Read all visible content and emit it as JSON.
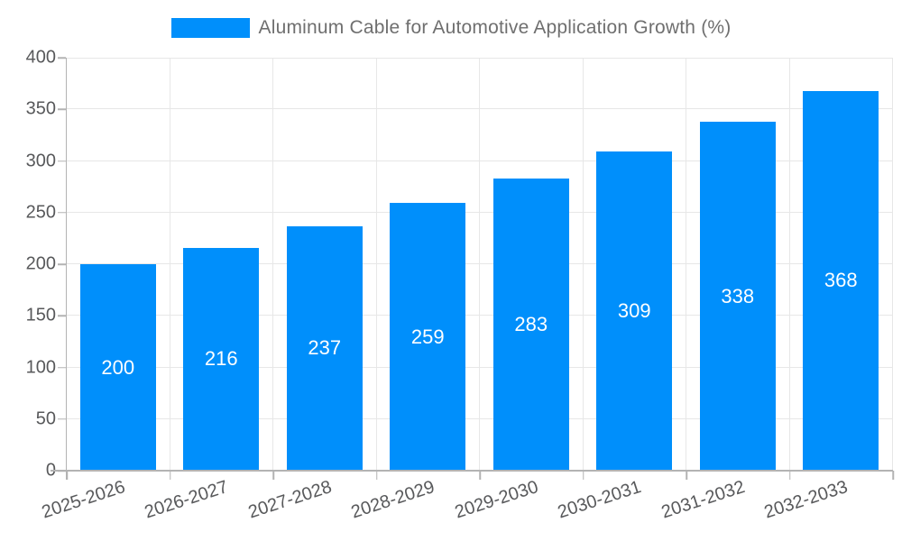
{
  "legend": {
    "label": "Aluminum Cable for Automotive Application Growth (%)",
    "position": "top"
  },
  "colors": {
    "bar": "#008FFB",
    "grid": "#e7e7e7",
    "axis": "#b3b3b3",
    "tick_label": "#58595b",
    "legend_text": "#6f6f6f",
    "value_label": "#ffffff",
    "background": "#ffffff"
  },
  "chart_data": {
    "type": "bar",
    "title": "Aluminum Cable for Automotive Application Growth (%)",
    "series_name": "Aluminum Cable for Automotive Application Growth (%)",
    "categories": [
      "2025-2026",
      "2026-2027",
      "2027-2028",
      "2028-2029",
      "2029-2030",
      "2030-2031",
      "2031-2032",
      "2032-2033"
    ],
    "values": [
      200,
      216,
      237,
      259,
      283,
      309,
      338,
      368
    ],
    "value_labels": "inside-center",
    "xlabel": "",
    "ylabel": "",
    "ylim": [
      0,
      400
    ],
    "ytick_step": 50,
    "yticks": [
      0,
      50,
      100,
      150,
      200,
      250,
      300,
      350,
      400
    ],
    "grid": true,
    "legend_position": "top",
    "xlabel_rotation_deg": -18
  }
}
